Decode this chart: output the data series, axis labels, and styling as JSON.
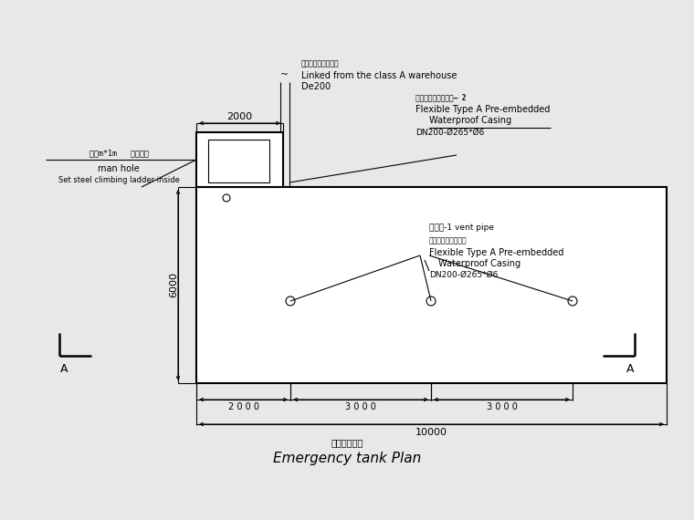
{
  "bg_color": "#e8e8e8",
  "line_color": "#000000",
  "title_cn": "事故池平面图",
  "title_en": "Emergency tank Plan",
  "label_manhole_cn": "人孔m*1m   内设爬梯",
  "label_manhole_en1": "man hole",
  "label_manhole_en2": "Set steel climbing ladder inside",
  "label_linked_cn": "连接甲类仓库消防水",
  "label_linked_en1": "Linked from the class A warehouse",
  "label_linked_en2": "De200",
  "label_flexible1_cn": "柔性防水套管内嵌层— 2",
  "label_flexible1_en1": "Flexible Type A Pre-embedded",
  "label_flexible1_en2": "Waterproof Casing",
  "label_flexible1_en3": "DN200-Ø265*Ø6",
  "label_vent_cn": "通气管-1 vent pipe",
  "label_vent_cn2": "柔性防水套管内嵌层",
  "label_flexible2_en1": "Flexible Type A Pre-embedded",
  "label_flexible2_en2": "Waterproof Casing",
  "label_flexible2_en3": "DN200-Ø265*Ø6",
  "dim_2000_top": "2000",
  "dim_6000": "6000",
  "dim_2000": "2 0 0 0",
  "dim_3000a": "3 0 0 0",
  "dim_3000b": "3 0 0 0",
  "dim_10000": "10000"
}
